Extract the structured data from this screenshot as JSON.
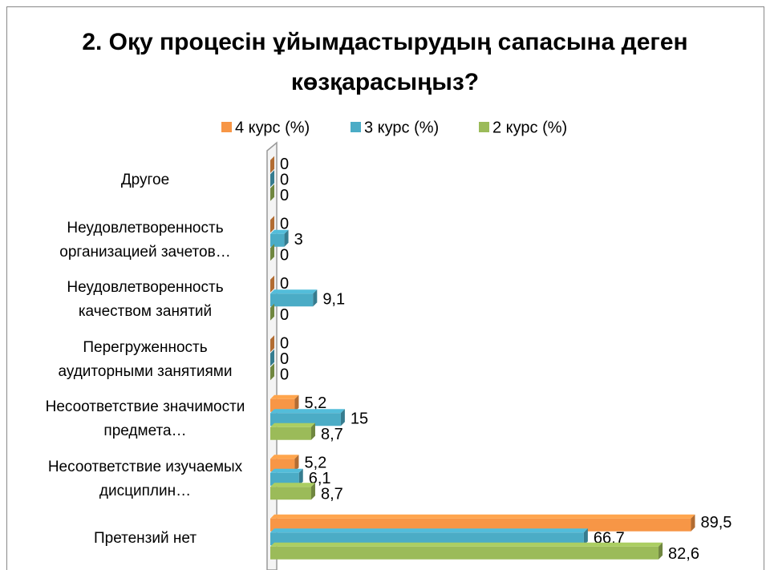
{
  "chart_data": {
    "type": "hbar3d",
    "title": "2. Оқу процесін ұйымдастырудың сапасына деген көзқарасыңыз?",
    "categories": [
      "Другое",
      "Неудовлетворенность организацией зачетов…",
      "Неудовлетворенность качеством занятий",
      "Перегруженность аудиторными занятиями",
      "Несоответствие значимости предмета…",
      "Несоответствие изучаемых дисциплин…",
      "Претензий нет"
    ],
    "series": [
      {
        "name": "4 курс (%)",
        "color": "#f79646",
        "values": [
          0,
          0,
          0,
          0,
          5.2,
          5.2,
          89.5
        ],
        "value_labels": [
          "0",
          "0",
          "0",
          "0",
          "5,2",
          "5,2",
          "89,5"
        ]
      },
      {
        "name": "3 курс (%)",
        "color": "#4bacc6",
        "values": [
          0,
          3,
          9.1,
          0,
          15,
          6.1,
          66.7
        ],
        "value_labels": [
          "0",
          "3",
          "9,1",
          "0",
          "15",
          "6,1",
          "66,7"
        ]
      },
      {
        "name": "2 курс (%)",
        "color": "#9bbb59",
        "values": [
          0,
          0,
          0,
          0,
          8.7,
          8.7,
          82.6
        ],
        "value_labels": [
          "0",
          "0",
          "0",
          "0",
          "8,7",
          "8,7",
          "82,6"
        ]
      }
    ],
    "xlim": [
      0,
      100
    ],
    "legend": "top"
  }
}
